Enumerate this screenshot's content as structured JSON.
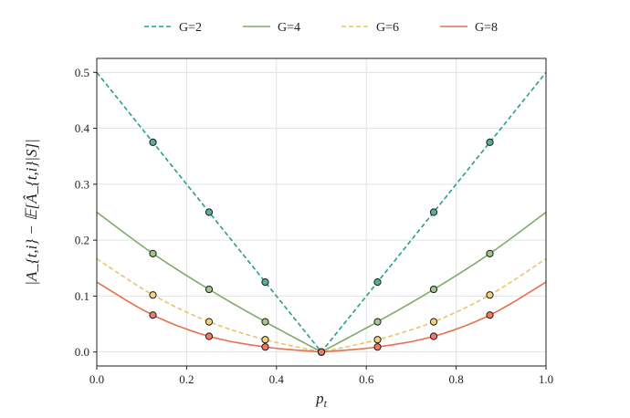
{
  "chart_data": {
    "type": "line",
    "xlabel": "p_t",
    "ylabel": "|A_{t,i} − 𝔼[Â_{t,i}|S]|",
    "xlim": [
      0.0,
      1.0
    ],
    "ylim": [
      -0.025,
      0.525
    ],
    "xticks": [
      "0.0",
      "0.2",
      "0.4",
      "0.6",
      "0.8",
      "1.0"
    ],
    "yticks": [
      "0.0",
      "0.1",
      "0.2",
      "0.3",
      "0.4",
      "0.5"
    ],
    "grid": true,
    "legend_position": "top-center",
    "series": [
      {
        "name": "G=2",
        "color": "#2a9d8f",
        "dash": "dashed",
        "G": 2,
        "points": [
          [
            0.125,
            0.375
          ],
          [
            0.25,
            0.25
          ],
          [
            0.375,
            0.125
          ],
          [
            0.5,
            0.0
          ],
          [
            0.625,
            0.125
          ],
          [
            0.75,
            0.25
          ],
          [
            0.875,
            0.375
          ]
        ]
      },
      {
        "name": "G=4",
        "color": "#7faa6a",
        "dash": "solid",
        "G": 4,
        "points": [
          [
            0.125,
            0.176
          ],
          [
            0.25,
            0.112
          ],
          [
            0.375,
            0.054
          ],
          [
            0.5,
            0.0
          ],
          [
            0.625,
            0.054
          ],
          [
            0.75,
            0.112
          ],
          [
            0.875,
            0.176
          ]
        ]
      },
      {
        "name": "G=6",
        "color": "#e9c46a",
        "dash": "dashed",
        "G": 6,
        "points": [
          [
            0.125,
            0.102
          ],
          [
            0.25,
            0.054
          ],
          [
            0.375,
            0.022
          ],
          [
            0.5,
            0.0
          ],
          [
            0.625,
            0.022
          ],
          [
            0.75,
            0.054
          ],
          [
            0.875,
            0.102
          ]
        ]
      },
      {
        "name": "G=8",
        "color": "#e76f51",
        "dash": "solid",
        "G": 8,
        "points": [
          [
            0.125,
            0.066
          ],
          [
            0.25,
            0.028
          ],
          [
            0.375,
            0.009
          ],
          [
            0.5,
            0.0
          ],
          [
            0.625,
            0.009
          ],
          [
            0.75,
            0.028
          ],
          [
            0.875,
            0.066
          ]
        ]
      }
    ],
    "marker_colors": {
      "G=2": "#5aae99",
      "G=4": "#a3c68e",
      "G=6": "#f3d27a",
      "G=8": "#ee7d63"
    }
  }
}
